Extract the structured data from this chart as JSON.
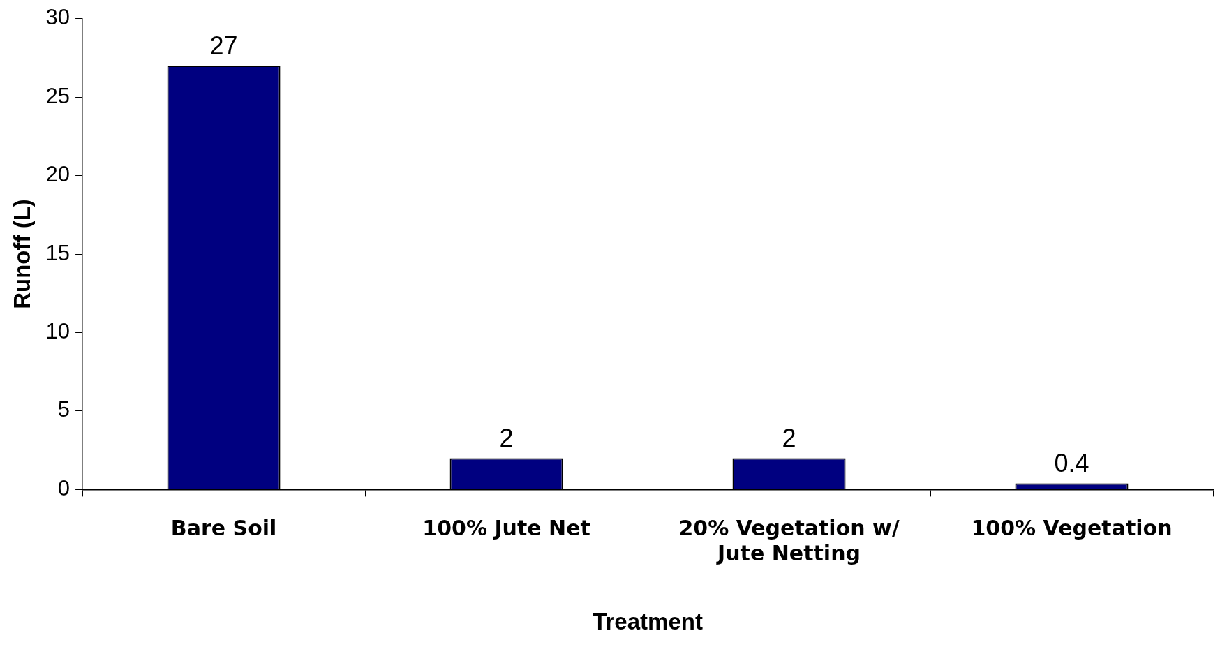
{
  "chart_data": {
    "type": "bar",
    "xlabel": "Treatment",
    "ylabel": "Runoff (L)",
    "categories": [
      "Bare Soil",
      "100% Jute Net",
      "20% Vegetation w/ Jute Netting",
      "100% Vegetation"
    ],
    "values": [
      27,
      2,
      2,
      0.4
    ],
    "color": "#000080",
    "ylim": [
      0,
      30
    ],
    "yticks": [
      0,
      5,
      10,
      15,
      20,
      25,
      30
    ],
    "grid": false,
    "legend": false,
    "data_labels": true
  }
}
